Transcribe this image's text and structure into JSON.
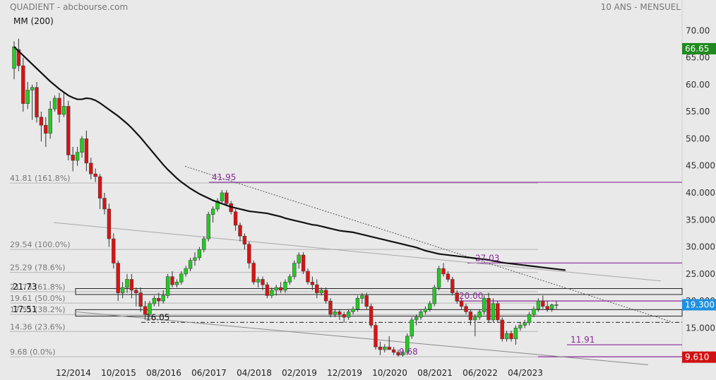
{
  "header": {
    "source": "QUADIENT - abcbourse.com",
    "period": "10 ANS - MENSUEL",
    "indicator": "MM (200)"
  },
  "chart_data": {
    "type": "candlestick",
    "title": "",
    "xlabel": "",
    "ylabel": "",
    "ylim": [
      8,
      72
    ],
    "y_ticks": [
      "70.00",
      "65.00",
      "60.00",
      "55.00",
      "50.00",
      "45.000",
      "40.000",
      "35.000",
      "30.000",
      "25.000",
      "20.000",
      "15.000",
      "10.000"
    ],
    "x_ticks": [
      "12/2014",
      "10/2015",
      "08/2016",
      "06/2017",
      "04/2018",
      "02/2019",
      "12/2019",
      "10/2020",
      "08/2021",
      "06/2022",
      "04/2023"
    ],
    "badges": [
      {
        "value": "66.65",
        "color": "#1f8a1f"
      },
      {
        "value": "19.300",
        "color": "#1e90e0"
      },
      {
        "value": "9.610",
        "color": "#d11212"
      }
    ],
    "fib_levels": [
      {
        "label": "41.81  (161.8%)",
        "value": 41.81
      },
      {
        "label": "29.54  (100.0%)",
        "value": 29.54
      },
      {
        "label": "25.29  (78.6%)",
        "value": 25.29
      },
      {
        "label": "21.73  (61.8%)",
        "value": 21.73
      },
      {
        "label": "19.61  (50.0%)",
        "value": 19.61
      },
      {
        "label": "17.51  (38.2%)",
        "value": 17.51
      },
      {
        "label": "14.36  (23.6%)",
        "value": 14.36
      },
      {
        "label": "9.68  (0.0%)",
        "value": 9.68
      }
    ],
    "annotations": [
      {
        "text": "41.95",
        "value": 41.95,
        "color": "purple"
      },
      {
        "text": "27.03",
        "value": 27.03,
        "color": "purple"
      },
      {
        "text": "20.00",
        "value": 20.0,
        "color": "purple"
      },
      {
        "text": "11.91",
        "value": 11.91,
        "color": "purple"
      },
      {
        "text": "9.68",
        "value": 9.68,
        "color": "purple"
      },
      {
        "text": "21.73",
        "value": 21.73,
        "color": "black"
      },
      {
        "text": "17.51",
        "value": 17.51,
        "color": "black"
      },
      {
        "text": "16.05",
        "value": 16.05,
        "color": "black"
      }
    ],
    "colors": {
      "up": "#22cc22",
      "down": "#dd1111",
      "ma": "#111111",
      "grid": "#bdbdbd",
      "purple": "#8b2a9a"
    },
    "moving_average": {
      "name": "MM (200)",
      "values": [
        67.0,
        66.2,
        65.4,
        64.6,
        63.8,
        63.0,
        62.2,
        61.4,
        60.6,
        59.9,
        59.2,
        58.6,
        58.0,
        57.6,
        57.3,
        57.3,
        57.5,
        57.4,
        57.1,
        56.6,
        56.0,
        55.4,
        54.8,
        54.2,
        53.5,
        52.8,
        52.0,
        51.1,
        50.2,
        49.2,
        48.2,
        47.2,
        46.2,
        45.2,
        44.3,
        43.5,
        42.7,
        42.0,
        41.4,
        40.8,
        40.3,
        39.8,
        39.4,
        39.0,
        38.6,
        38.3,
        38.0,
        37.7,
        37.4,
        37.2,
        37.0,
        36.8,
        36.6,
        36.5,
        36.4,
        36.3,
        36.2,
        36.0,
        35.8,
        35.6,
        35.3,
        35.1,
        34.9,
        34.7,
        34.5,
        34.3,
        34.1,
        34.0,
        33.8,
        33.6,
        33.4,
        33.2,
        33.0,
        32.9,
        32.8,
        32.7,
        32.5,
        32.3,
        32.1,
        31.9,
        31.7,
        31.5,
        31.3,
        31.1,
        30.9,
        30.7,
        30.5,
        30.3,
        30.1,
        29.9,
        29.6,
        29.3,
        29.1,
        28.9,
        28.7,
        28.6,
        28.5,
        28.4,
        28.3,
        28.2,
        28.1,
        28.0,
        27.9,
        27.8,
        27.7,
        27.6,
        27.4,
        27.3,
        27.1,
        27.0,
        26.9,
        26.8,
        26.7,
        26.6,
        26.5,
        26.4,
        26.3,
        26.2,
        26.1,
        26.0,
        25.9,
        25.8,
        25.7
      ]
    },
    "ohlc": [
      {
        "o": 63.0,
        "h": 68.0,
        "l": 61.0,
        "c": 67.0
      },
      {
        "o": 66.5,
        "h": 68.5,
        "l": 62.5,
        "c": 63.5
      },
      {
        "o": 63.5,
        "h": 65.0,
        "l": 55.0,
        "c": 56.5
      },
      {
        "o": 56.5,
        "h": 60.5,
        "l": 55.5,
        "c": 59.0
      },
      {
        "o": 59.0,
        "h": 60.0,
        "l": 53.5,
        "c": 59.5
      },
      {
        "o": 59.5,
        "h": 60.5,
        "l": 53.0,
        "c": 54.0
      },
      {
        "o": 54.0,
        "h": 55.0,
        "l": 49.5,
        "c": 52.5
      },
      {
        "o": 52.5,
        "h": 54.0,
        "l": 48.5,
        "c": 51.0
      },
      {
        "o": 51.0,
        "h": 57.0,
        "l": 50.0,
        "c": 55.5
      },
      {
        "o": 55.5,
        "h": 58.0,
        "l": 55.0,
        "c": 57.5
      },
      {
        "o": 57.5,
        "h": 58.5,
        "l": 53.0,
        "c": 54.5
      },
      {
        "o": 54.5,
        "h": 58.5,
        "l": 54.0,
        "c": 56.0
      },
      {
        "o": 56.0,
        "h": 57.0,
        "l": 46.0,
        "c": 47.0
      },
      {
        "o": 47.0,
        "h": 48.5,
        "l": 44.0,
        "c": 46.0
      },
      {
        "o": 46.0,
        "h": 48.5,
        "l": 45.0,
        "c": 47.5
      },
      {
        "o": 47.5,
        "h": 50.5,
        "l": 46.5,
        "c": 50.0
      },
      {
        "o": 50.0,
        "h": 51.5,
        "l": 44.0,
        "c": 45.5
      },
      {
        "o": 45.5,
        "h": 46.5,
        "l": 42.5,
        "c": 43.5
      },
      {
        "o": 43.5,
        "h": 44.5,
        "l": 42.0,
        "c": 43.0
      },
      {
        "o": 43.0,
        "h": 43.5,
        "l": 37.0,
        "c": 39.0
      },
      {
        "o": 39.0,
        "h": 40.0,
        "l": 36.0,
        "c": 37.0
      },
      {
        "o": 37.0,
        "h": 38.0,
        "l": 30.0,
        "c": 31.5
      },
      {
        "o": 31.5,
        "h": 32.5,
        "l": 26.0,
        "c": 27.0
      },
      {
        "o": 27.0,
        "h": 27.5,
        "l": 20.0,
        "c": 21.5
      },
      {
        "o": 21.5,
        "h": 23.5,
        "l": 20.5,
        "c": 22.5
      },
      {
        "o": 22.5,
        "h": 25.0,
        "l": 21.5,
        "c": 24.0
      },
      {
        "o": 24.0,
        "h": 25.0,
        "l": 20.5,
        "c": 22.0
      },
      {
        "o": 22.0,
        "h": 22.5,
        "l": 19.0,
        "c": 21.5
      },
      {
        "o": 21.5,
        "h": 22.5,
        "l": 18.0,
        "c": 19.0
      },
      {
        "o": 19.0,
        "h": 20.0,
        "l": 16.5,
        "c": 17.5
      },
      {
        "o": 17.5,
        "h": 20.0,
        "l": 17.0,
        "c": 19.5
      },
      {
        "o": 19.5,
        "h": 21.0,
        "l": 19.0,
        "c": 20.5
      },
      {
        "o": 20.5,
        "h": 21.5,
        "l": 19.0,
        "c": 20.0
      },
      {
        "o": 20.0,
        "h": 22.0,
        "l": 19.5,
        "c": 21.0
      },
      {
        "o": 21.0,
        "h": 25.0,
        "l": 20.5,
        "c": 24.5
      },
      {
        "o": 24.5,
        "h": 25.5,
        "l": 22.5,
        "c": 23.0
      },
      {
        "o": 23.0,
        "h": 24.0,
        "l": 22.5,
        "c": 23.5
      },
      {
        "o": 23.5,
        "h": 25.5,
        "l": 23.0,
        "c": 25.0
      },
      {
        "o": 25.0,
        "h": 26.5,
        "l": 24.5,
        "c": 26.0
      },
      {
        "o": 26.0,
        "h": 28.0,
        "l": 25.5,
        "c": 27.5
      },
      {
        "o": 27.5,
        "h": 29.0,
        "l": 26.5,
        "c": 28.0
      },
      {
        "o": 28.0,
        "h": 30.0,
        "l": 27.5,
        "c": 29.5
      },
      {
        "o": 29.5,
        "h": 32.0,
        "l": 29.0,
        "c": 31.5
      },
      {
        "o": 31.5,
        "h": 36.5,
        "l": 31.0,
        "c": 36.0
      },
      {
        "o": 36.0,
        "h": 37.5,
        "l": 34.5,
        "c": 37.0
      },
      {
        "o": 37.0,
        "h": 39.0,
        "l": 36.5,
        "c": 38.5
      },
      {
        "o": 38.5,
        "h": 40.5,
        "l": 38.0,
        "c": 40.0
      },
      {
        "o": 40.0,
        "h": 40.5,
        "l": 37.5,
        "c": 38.0
      },
      {
        "o": 38.0,
        "h": 38.5,
        "l": 36.0,
        "c": 36.5
      },
      {
        "o": 36.5,
        "h": 37.0,
        "l": 33.0,
        "c": 34.0
      },
      {
        "o": 34.0,
        "h": 34.5,
        "l": 31.0,
        "c": 32.0
      },
      {
        "o": 32.0,
        "h": 32.5,
        "l": 29.5,
        "c": 30.5
      },
      {
        "o": 30.5,
        "h": 31.0,
        "l": 26.0,
        "c": 27.0
      },
      {
        "o": 27.0,
        "h": 27.5,
        "l": 23.0,
        "c": 23.5
      },
      {
        "o": 23.5,
        "h": 24.5,
        "l": 22.5,
        "c": 24.0
      },
      {
        "o": 24.0,
        "h": 24.5,
        "l": 22.0,
        "c": 23.0
      },
      {
        "o": 23.0,
        "h": 23.5,
        "l": 20.5,
        "c": 21.0
      },
      {
        "o": 21.0,
        "h": 22.5,
        "l": 20.5,
        "c": 22.0
      },
      {
        "o": 22.0,
        "h": 23.0,
        "l": 21.0,
        "c": 22.5
      },
      {
        "o": 22.5,
        "h": 23.5,
        "l": 21.5,
        "c": 22.0
      },
      {
        "o": 22.0,
        "h": 24.0,
        "l": 21.5,
        "c": 23.5
      },
      {
        "o": 23.5,
        "h": 25.0,
        "l": 23.0,
        "c": 24.5
      },
      {
        "o": 24.5,
        "h": 27.5,
        "l": 24.0,
        "c": 27.0
      },
      {
        "o": 27.0,
        "h": 29.0,
        "l": 26.0,
        "c": 28.5
      },
      {
        "o": 28.5,
        "h": 29.0,
        "l": 25.0,
        "c": 25.5
      },
      {
        "o": 25.5,
        "h": 26.0,
        "l": 23.0,
        "c": 23.5
      },
      {
        "o": 23.5,
        "h": 24.5,
        "l": 22.0,
        "c": 23.0
      },
      {
        "o": 23.0,
        "h": 24.0,
        "l": 20.5,
        "c": 21.5
      },
      {
        "o": 21.5,
        "h": 22.5,
        "l": 21.0,
        "c": 22.0
      },
      {
        "o": 22.0,
        "h": 22.5,
        "l": 19.5,
        "c": 20.0
      },
      {
        "o": 20.0,
        "h": 20.5,
        "l": 17.0,
        "c": 17.5
      },
      {
        "o": 17.5,
        "h": 18.5,
        "l": 17.0,
        "c": 18.0
      },
      {
        "o": 18.0,
        "h": 18.5,
        "l": 16.5,
        "c": 17.5
      },
      {
        "o": 17.5,
        "h": 18.0,
        "l": 16.0,
        "c": 17.0
      },
      {
        "o": 17.0,
        "h": 18.5,
        "l": 16.5,
        "c": 18.0
      },
      {
        "o": 18.0,
        "h": 19.0,
        "l": 17.5,
        "c": 18.5
      },
      {
        "o": 18.5,
        "h": 21.0,
        "l": 18.0,
        "c": 20.5
      },
      {
        "o": 20.5,
        "h": 21.5,
        "l": 19.5,
        "c": 21.0
      },
      {
        "o": 21.0,
        "h": 21.5,
        "l": 18.5,
        "c": 19.0
      },
      {
        "o": 19.0,
        "h": 19.5,
        "l": 15.0,
        "c": 15.5
      },
      {
        "o": 15.5,
        "h": 16.0,
        "l": 11.0,
        "c": 11.5
      },
      {
        "o": 11.5,
        "h": 12.5,
        "l": 10.0,
        "c": 11.0
      },
      {
        "o": 11.0,
        "h": 12.0,
        "l": 10.5,
        "c": 11.5
      },
      {
        "o": 11.5,
        "h": 13.5,
        "l": 11.0,
        "c": 11.0
      },
      {
        "o": 11.0,
        "h": 11.5,
        "l": 10.0,
        "c": 10.5
      },
      {
        "o": 10.5,
        "h": 11.0,
        "l": 9.7,
        "c": 10.0
      },
      {
        "o": 10.0,
        "h": 11.0,
        "l": 9.7,
        "c": 10.5
      },
      {
        "o": 10.5,
        "h": 14.0,
        "l": 10.0,
        "c": 13.5
      },
      {
        "o": 13.5,
        "h": 17.0,
        "l": 13.0,
        "c": 16.5
      },
      {
        "o": 16.5,
        "h": 17.5,
        "l": 15.5,
        "c": 17.0
      },
      {
        "o": 17.0,
        "h": 18.5,
        "l": 16.5,
        "c": 18.0
      },
      {
        "o": 18.0,
        "h": 19.0,
        "l": 17.5,
        "c": 18.5
      },
      {
        "o": 18.5,
        "h": 20.0,
        "l": 18.0,
        "c": 19.5
      },
      {
        "o": 19.5,
        "h": 23.0,
        "l": 19.0,
        "c": 22.5
      },
      {
        "o": 22.5,
        "h": 26.5,
        "l": 22.0,
        "c": 26.0
      },
      {
        "o": 26.0,
        "h": 27.0,
        "l": 24.5,
        "c": 25.0
      },
      {
        "o": 25.0,
        "h": 25.5,
        "l": 23.5,
        "c": 24.0
      },
      {
        "o": 24.0,
        "h": 24.5,
        "l": 21.0,
        "c": 21.5
      },
      {
        "o": 21.5,
        "h": 22.0,
        "l": 19.5,
        "c": 20.0
      },
      {
        "o": 20.0,
        "h": 20.5,
        "l": 18.5,
        "c": 19.0
      },
      {
        "o": 19.0,
        "h": 19.5,
        "l": 17.5,
        "c": 18.0
      },
      {
        "o": 18.0,
        "h": 18.5,
        "l": 15.5,
        "c": 16.5
      },
      {
        "o": 16.5,
        "h": 17.5,
        "l": 13.5,
        "c": 17.0
      },
      {
        "o": 17.0,
        "h": 18.5,
        "l": 16.5,
        "c": 18.0
      },
      {
        "o": 18.0,
        "h": 21.0,
        "l": 17.5,
        "c": 20.5
      },
      {
        "o": 20.5,
        "h": 21.5,
        "l": 16.0,
        "c": 16.5
      },
      {
        "o": 16.5,
        "h": 20.5,
        "l": 16.0,
        "c": 19.5
      },
      {
        "o": 19.5,
        "h": 20.0,
        "l": 16.0,
        "c": 16.5
      },
      {
        "o": 16.5,
        "h": 17.0,
        "l": 12.5,
        "c": 13.0
      },
      {
        "o": 13.0,
        "h": 14.5,
        "l": 12.5,
        "c": 14.0
      },
      {
        "o": 14.0,
        "h": 14.5,
        "l": 12.5,
        "c": 13.0
      },
      {
        "o": 13.0,
        "h": 15.5,
        "l": 11.9,
        "c": 15.0
      },
      {
        "o": 15.0,
        "h": 16.0,
        "l": 14.5,
        "c": 15.5
      },
      {
        "o": 15.5,
        "h": 16.5,
        "l": 15.0,
        "c": 16.0
      },
      {
        "o": 16.0,
        "h": 18.0,
        "l": 15.5,
        "c": 17.5
      },
      {
        "o": 17.5,
        "h": 19.0,
        "l": 17.0,
        "c": 18.5
      },
      {
        "o": 18.5,
        "h": 20.5,
        "l": 18.0,
        "c": 20.0
      },
      {
        "o": 20.0,
        "h": 21.0,
        "l": 18.5,
        "c": 19.0
      },
      {
        "o": 19.0,
        "h": 20.0,
        "l": 18.0,
        "c": 18.5
      },
      {
        "o": 18.5,
        "h": 19.5,
        "l": 18.0,
        "c": 19.3
      },
      {
        "o": 19.3,
        "h": 20.0,
        "l": 18.5,
        "c": 19.3
      }
    ]
  }
}
